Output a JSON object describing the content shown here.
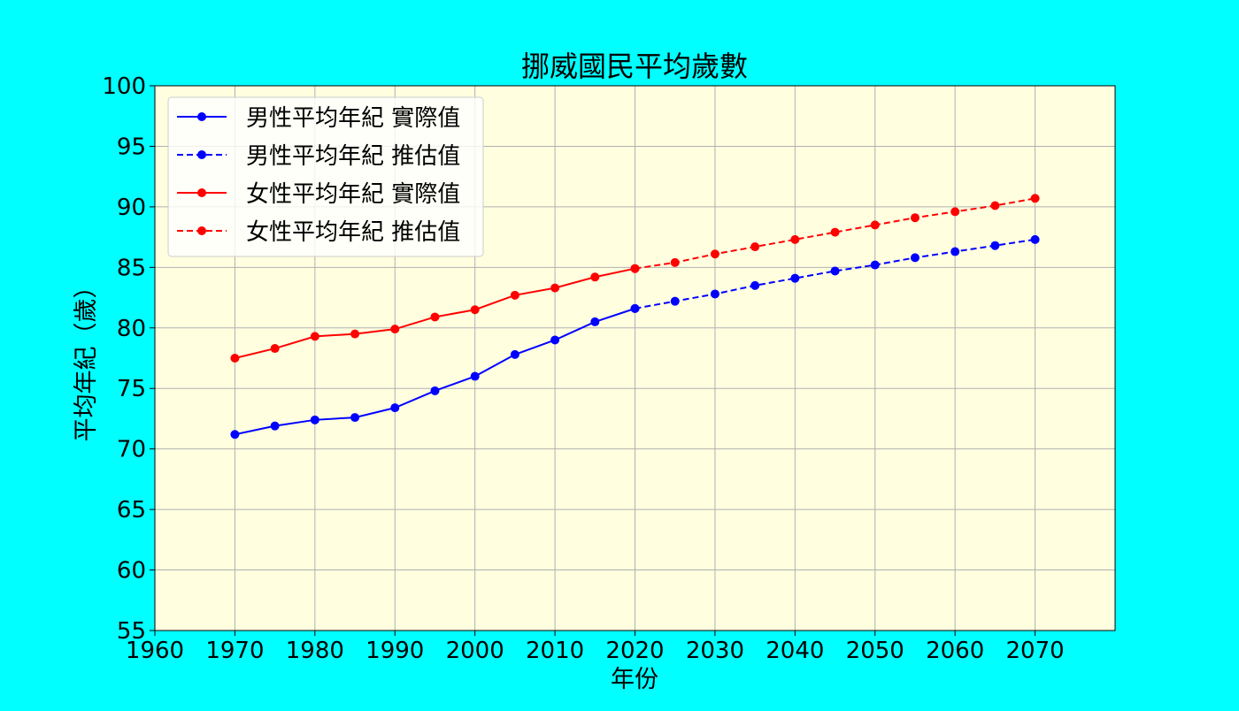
{
  "chart_data": {
    "type": "line",
    "title": "挪威國民平均歲數",
    "xlabel": "年份",
    "ylabel": "平均年紀（歲）",
    "xlim": [
      1960,
      2080
    ],
    "ylim": [
      55,
      100
    ],
    "x_ticks": [
      1960,
      1970,
      1980,
      1990,
      2000,
      2010,
      2020,
      2030,
      2040,
      2050,
      2060,
      2070
    ],
    "y_ticks": [
      55,
      60,
      65,
      70,
      75,
      80,
      85,
      90,
      95,
      100
    ],
    "grid": true,
    "legend_position": "top-left",
    "plot_background": "#ffffe0",
    "page_background": "#00ffff",
    "series": [
      {
        "name": "男性平均年紀 實際值",
        "color": "#0000ff",
        "line_style": "solid",
        "x": [
          1970,
          1975,
          1980,
          1985,
          1990,
          1995,
          2000,
          2005,
          2010,
          2015,
          2020
        ],
        "values": [
          71.2,
          71.9,
          72.4,
          72.6,
          73.4,
          74.8,
          76.0,
          77.8,
          79.0,
          80.5,
          81.6
        ]
      },
      {
        "name": "男性平均年紀 推估值",
        "color": "#0000ff",
        "line_style": "dashed",
        "x": [
          2020,
          2025,
          2030,
          2035,
          2040,
          2045,
          2050,
          2055,
          2060,
          2065,
          2070
        ],
        "values": [
          81.6,
          82.2,
          82.8,
          83.5,
          84.1,
          84.7,
          85.2,
          85.8,
          86.3,
          86.8,
          87.3
        ]
      },
      {
        "name": "女性平均年紀 實際值",
        "color": "#ff0000",
        "line_style": "solid",
        "x": [
          1970,
          1975,
          1980,
          1985,
          1990,
          1995,
          2000,
          2005,
          2010,
          2015,
          2020
        ],
        "values": [
          77.5,
          78.3,
          79.3,
          79.5,
          79.9,
          80.9,
          81.5,
          82.7,
          83.3,
          84.2,
          84.9
        ]
      },
      {
        "name": "女性平均年紀 推估值",
        "color": "#ff0000",
        "line_style": "dashed",
        "x": [
          2020,
          2025,
          2030,
          2035,
          2040,
          2045,
          2050,
          2055,
          2060,
          2065,
          2070
        ],
        "values": [
          84.9,
          85.4,
          86.1,
          86.7,
          87.3,
          87.9,
          88.5,
          89.1,
          89.6,
          90.1,
          90.7
        ]
      }
    ]
  }
}
